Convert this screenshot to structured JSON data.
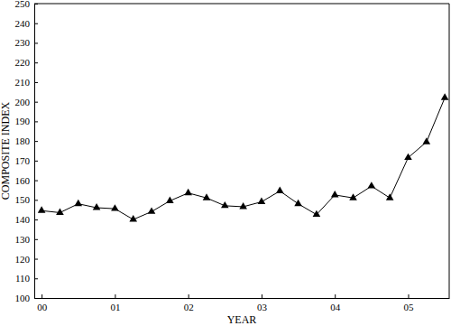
{
  "chart_data": {
    "type": "line",
    "x_label": "YEAR",
    "y_label": "COMPOSITE INDEX",
    "x": [
      0,
      0.25,
      0.5,
      0.75,
      1,
      1.25,
      1.5,
      1.75,
      2,
      2.25,
      2.5,
      2.75,
      3,
      3.25,
      3.5,
      3.75,
      4,
      4.25,
      4.5,
      4.75,
      5,
      5.25,
      5.5
    ],
    "values": [
      144.5,
      143.5,
      148,
      146,
      145.5,
      140,
      144,
      149.5,
      153.5,
      151,
      147,
      146.5,
      149,
      154.5,
      148,
      142.5,
      152.5,
      151,
      157,
      151,
      171.5,
      179.5,
      202
    ],
    "color": "#000000",
    "marker": "triangle",
    "line_style": "solid",
    "xlim": [
      -0.1,
      5.56
    ],
    "xticks": [
      {
        "value": 0,
        "label": "00"
      },
      {
        "value": 1,
        "label": "01"
      },
      {
        "value": 2,
        "label": "02"
      },
      {
        "value": 3,
        "label": "03"
      },
      {
        "value": 4,
        "label": "04"
      },
      {
        "value": 5,
        "label": "05"
      }
    ],
    "ylim": [
      100,
      250
    ],
    "yticks": [
      100,
      110,
      120,
      130,
      140,
      150,
      160,
      170,
      180,
      190,
      200,
      210,
      220,
      230,
      240,
      250
    ],
    "grid": false
  }
}
